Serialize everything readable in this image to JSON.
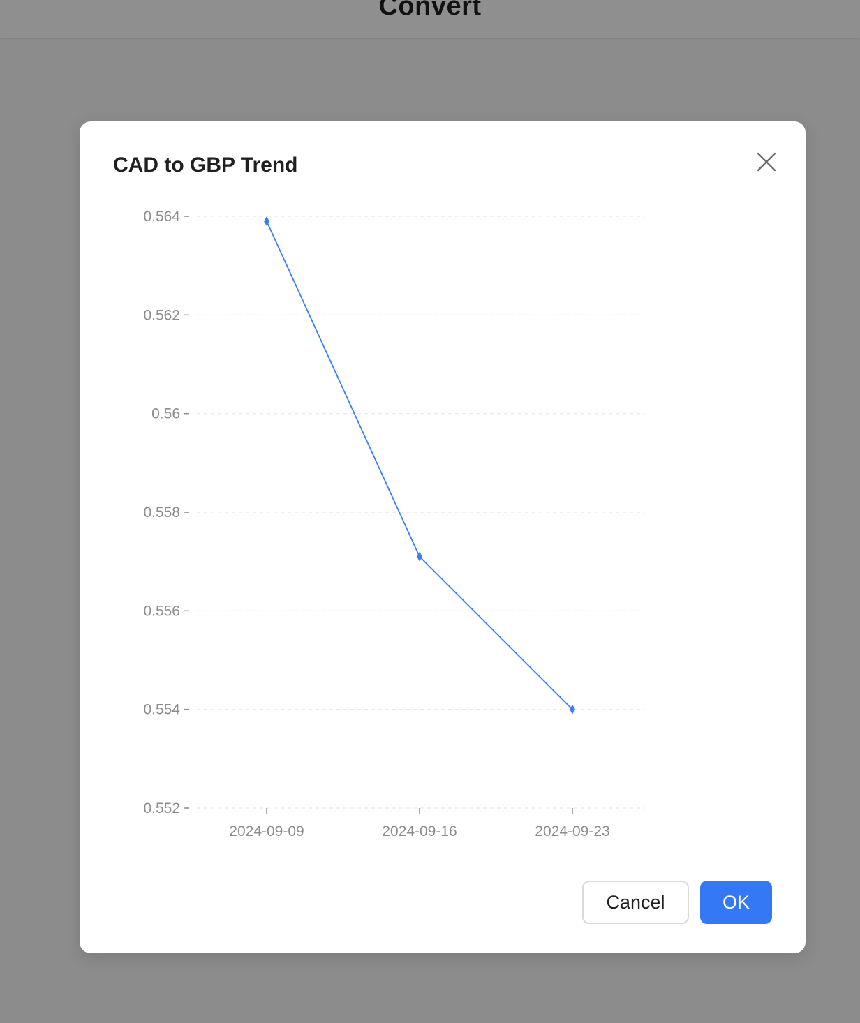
{
  "app": {
    "title": "Convert"
  },
  "modal": {
    "title": "CAD to GBP Trend",
    "cancel_label": "Cancel",
    "ok_label": "OK",
    "close_icon": "close-icon"
  },
  "colors": {
    "line": "#3b7ff0",
    "primary": "#3478f6",
    "overlay": "#8c8c8c"
  },
  "chart_data": {
    "type": "line",
    "categories": [
      "2024-09-09",
      "2024-09-16",
      "2024-09-23"
    ],
    "series": [
      {
        "values": [
          0.5639,
          0.5571,
          0.554
        ]
      }
    ],
    "yticks": [
      "0.564",
      "0.562",
      "0.56",
      "0.558",
      "0.556",
      "0.554",
      "0.552"
    ],
    "ylim": [
      0.552,
      0.564
    ],
    "marker": "diamond",
    "grid": "horizontal-dashed"
  }
}
